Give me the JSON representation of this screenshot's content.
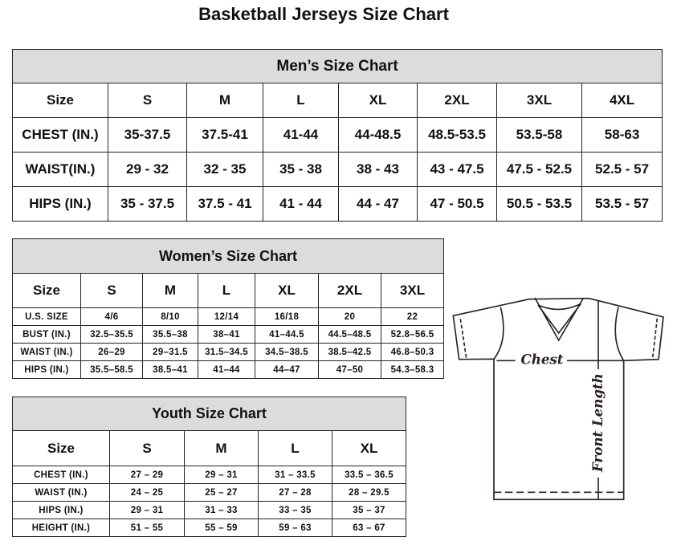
{
  "title": "Basketball Jerseys Size Chart",
  "men": {
    "caption": "Men’s Size Chart",
    "header": [
      "Size",
      "S",
      "M",
      "L",
      "XL",
      "2XL",
      "3XL",
      "4XL"
    ],
    "rows": [
      [
        "CHEST (IN.)",
        "35-37.5",
        "37.5-41",
        "41-44",
        "44-48.5",
        "48.5-53.5",
        "53.5-58",
        "58-63"
      ],
      [
        "WAIST(IN.)",
        "29 - 32",
        "32 - 35",
        "35 - 38",
        "38 - 43",
        "43 - 47.5",
        "47.5 - 52.5",
        "52.5 - 57"
      ],
      [
        "HIPS (IN.)",
        "35 - 37.5",
        "37.5 - 41",
        "41 - 44",
        "44 - 47",
        "47 - 50.5",
        "50.5 - 53.5",
        "53.5 - 57"
      ]
    ]
  },
  "women": {
    "caption": "Women’s Size Chart",
    "header": [
      "Size",
      "S",
      "M",
      "L",
      "XL",
      "2XL",
      "3XL"
    ],
    "rows": [
      [
        "U.S.  SIZE",
        "4/6",
        "8/10",
        "12/14",
        "16/18",
        "20",
        "22"
      ],
      [
        "BUST  (IN.)",
        "32.5–35.5",
        "35.5–38",
        "38–41",
        "41–44.5",
        "44.5–48.5",
        "52.8–56.5"
      ],
      [
        "WAIST  (IN.)",
        "26–29",
        "29–31.5",
        "31.5–34.5",
        "34.5–38.5",
        "38.5–42.5",
        "46.8–50.3"
      ],
      [
        "HIPS  (IN.)",
        "35.5–58.5",
        "38.5–41",
        "41–44",
        "44–47",
        "47–50",
        "54.3–58.3"
      ]
    ]
  },
  "youth": {
    "caption": "Youth Size Chart",
    "header": [
      "Size",
      "S",
      "M",
      "L",
      "XL"
    ],
    "rows": [
      [
        "CHEST  (IN.)",
        "27  –  29",
        "29  –  31",
        "31  –  33.5",
        "33.5  –  36.5"
      ],
      [
        "WAIST  (IN.)",
        "24  –  25",
        "25  –  27",
        "27  –  28",
        "28  –  29.5"
      ],
      [
        "HIPS  (IN.)",
        "29  –  31",
        "31  –  33",
        "33  –  35",
        "35  –  37"
      ],
      [
        "HEIGHT  (IN.)",
        "51  –  55",
        "55  –  59",
        "59  –  63",
        "63  –  67"
      ]
    ]
  },
  "diagram": {
    "chest_label": "Chest",
    "length_label": "Front Length"
  }
}
